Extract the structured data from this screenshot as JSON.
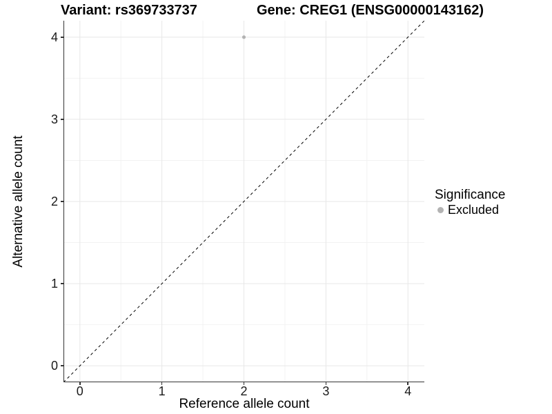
{
  "header": {
    "variant_title": "Variant: rs369733737",
    "gene_title": "Gene: CREG1 (ENSG00000143162)"
  },
  "axes": {
    "x_label": "Reference allele count",
    "y_label": "Alternative allele count",
    "x_tick_labels": [
      "0",
      "1",
      "2",
      "3",
      "4"
    ],
    "y_tick_labels": [
      "0",
      "1",
      "2",
      "3",
      "4"
    ]
  },
  "legend": {
    "title": "Significance",
    "items": [
      {
        "label": "Excluded",
        "color": "#b3b3b3"
      }
    ]
  },
  "chart_data": {
    "type": "scatter",
    "title": "Variant: rs369733737 | Gene: CREG1 (ENSG00000143162)",
    "xlabel": "Reference allele count",
    "ylabel": "Alternative allele count",
    "xlim": [
      -0.2,
      4.2
    ],
    "ylim": [
      -0.2,
      4.2
    ],
    "x_major_ticks": [
      0,
      1,
      2,
      3,
      4
    ],
    "y_major_ticks": [
      0,
      1,
      2,
      3,
      4
    ],
    "x_minor_gridlines": [
      0.5,
      1.5,
      2.5,
      3.5
    ],
    "y_minor_gridlines": [
      0.5,
      1.5,
      2.5,
      3.5
    ],
    "grid": true,
    "legend_position": "right",
    "series": [
      {
        "name": "Excluded",
        "color": "#b3b3b3",
        "marker_radius": 2.6,
        "points": [
          [
            2,
            4
          ]
        ]
      }
    ],
    "reference_line": {
      "shape": "identity y=x",
      "style": "dashed",
      "color": "#000000",
      "x1": -0.2,
      "y1": -0.2,
      "x2": 4.2,
      "y2": 4.2
    }
  },
  "colors": {
    "background": "#ffffff",
    "grid_major": "#e7e7e7",
    "grid_minor": "#f2f2f2",
    "axis_line": "#333333",
    "tick_text": "#1a1a1a",
    "point": "#b3b3b3"
  }
}
